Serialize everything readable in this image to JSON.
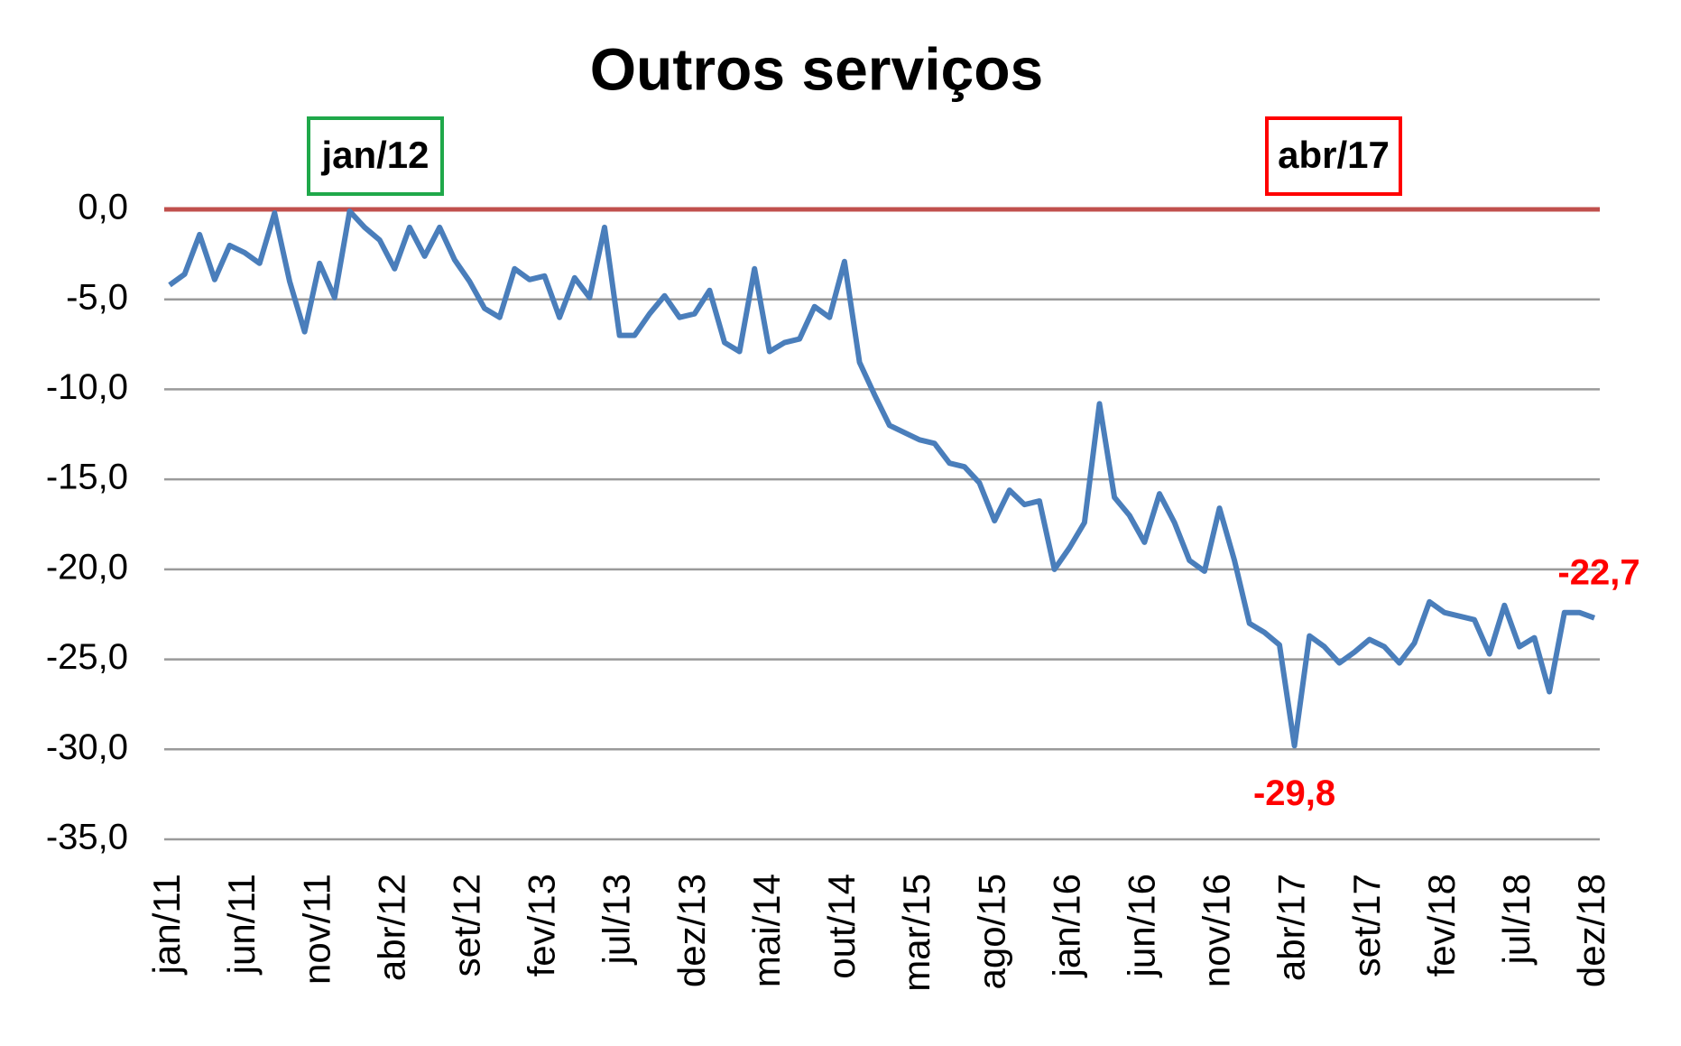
{
  "chart_data": {
    "type": "line",
    "title": "Outros serviços",
    "categories": [
      "jan/11",
      null,
      null,
      null,
      null,
      "jun/11",
      null,
      null,
      null,
      null,
      "nov/11",
      null,
      null,
      null,
      null,
      "abr/12",
      null,
      null,
      null,
      null,
      "set/12",
      null,
      null,
      null,
      null,
      "fev/13",
      null,
      null,
      null,
      null,
      "jul/13",
      null,
      null,
      null,
      null,
      "dez/13",
      null,
      null,
      null,
      null,
      "mai/14",
      null,
      null,
      null,
      null,
      "out/14",
      null,
      null,
      null,
      null,
      "mar/15",
      null,
      null,
      null,
      null,
      "ago/15",
      null,
      null,
      null,
      null,
      "jan/16",
      null,
      null,
      null,
      null,
      "jun/16",
      null,
      null,
      null,
      null,
      "nov/16",
      null,
      null,
      null,
      null,
      "abr/17",
      null,
      null,
      null,
      null,
      "set/17",
      null,
      null,
      null,
      null,
      "fev/18",
      null,
      null,
      null,
      null,
      "jul/18",
      null,
      null,
      null,
      null,
      "dez/18"
    ],
    "series": [
      {
        "color": "#4a7ebb",
        "values": [
          -4.2,
          -3.6,
          -1.4,
          -3.9,
          -2.0,
          -2.4,
          -3.0,
          -0.2,
          -4.0,
          -6.8,
          -3.0,
          -4.9,
          -0.1,
          -1.0,
          -1.7,
          -3.3,
          -1.0,
          -2.6,
          -1.0,
          -2.8,
          -4.0,
          -5.5,
          -6.0,
          -3.3,
          -3.9,
          -3.7,
          -6.0,
          -3.8,
          -4.9,
          -1.0,
          -7.0,
          -7.0,
          -5.8,
          -4.8,
          -6.0,
          -5.8,
          -4.5,
          -7.4,
          -7.9,
          -3.3,
          -7.9,
          -7.4,
          -7.2,
          -5.4,
          -6.0,
          -2.9,
          -8.5,
          -10.3,
          -12.0,
          -12.4,
          -12.8,
          -13.0,
          -14.1,
          -14.3,
          -15.2,
          -17.3,
          -15.6,
          -16.4,
          -16.2,
          -20.0,
          -18.8,
          -17.4,
          -10.8,
          -16.0,
          -17.0,
          -18.5,
          -15.8,
          -17.4,
          -19.5,
          -20.1,
          -16.6,
          -19.5,
          -23.0,
          -23.5,
          -24.2,
          -29.8,
          -23.7,
          -24.3,
          -25.2,
          -24.6,
          -23.9,
          -24.3,
          -25.2,
          -24.1,
          -21.8,
          -22.4,
          -22.6,
          -22.8,
          -24.7,
          -22.0,
          -24.3,
          -23.8,
          -26.8,
          -22.4,
          -22.4,
          -22.7
        ],
        "value_labels": [
          null,
          null,
          null,
          null,
          null,
          null,
          null,
          null,
          null,
          null,
          null,
          null,
          null,
          null,
          null,
          null,
          null,
          null,
          null,
          null,
          null,
          null,
          null,
          null,
          null,
          null,
          null,
          null,
          null,
          null,
          null,
          null,
          null,
          null,
          null,
          null,
          null,
          null,
          null,
          null,
          null,
          null,
          null,
          null,
          null,
          null,
          null,
          null,
          null,
          null,
          null,
          null,
          null,
          null,
          null,
          null,
          null,
          null,
          null,
          null,
          null,
          null,
          null,
          null,
          null,
          null,
          null,
          null,
          null,
          null,
          null,
          null,
          null,
          null,
          null,
          "-29,8",
          null,
          null,
          null,
          null,
          null,
          null,
          null,
          null,
          null,
          null,
          null,
          null,
          null,
          null,
          null,
          null,
          null,
          null,
          null,
          "-22,7"
        ],
        "value_label_color": "#ff0000"
      }
    ],
    "ylim": [
      -35,
      0
    ],
    "yticks": [
      {
        "value": -35,
        "label": "-35,0"
      },
      {
        "value": -30,
        "label": "-30,0"
      },
      {
        "value": -25,
        "label": "-25,0"
      },
      {
        "value": -20,
        "label": "-20,0"
      },
      {
        "value": -15,
        "label": "-15,0"
      },
      {
        "value": -10,
        "label": "-10,0"
      },
      {
        "value": -5,
        "label": "-5,0"
      },
      {
        "value": 0,
        "label": "0,0"
      }
    ],
    "grid": true,
    "reference_line": {
      "value": 0,
      "color": "#c0504d"
    },
    "annotations": [
      {
        "text": "jan/12",
        "color": "#1fa84a"
      },
      {
        "text": "abr/17",
        "color": "#ff0000"
      }
    ]
  }
}
